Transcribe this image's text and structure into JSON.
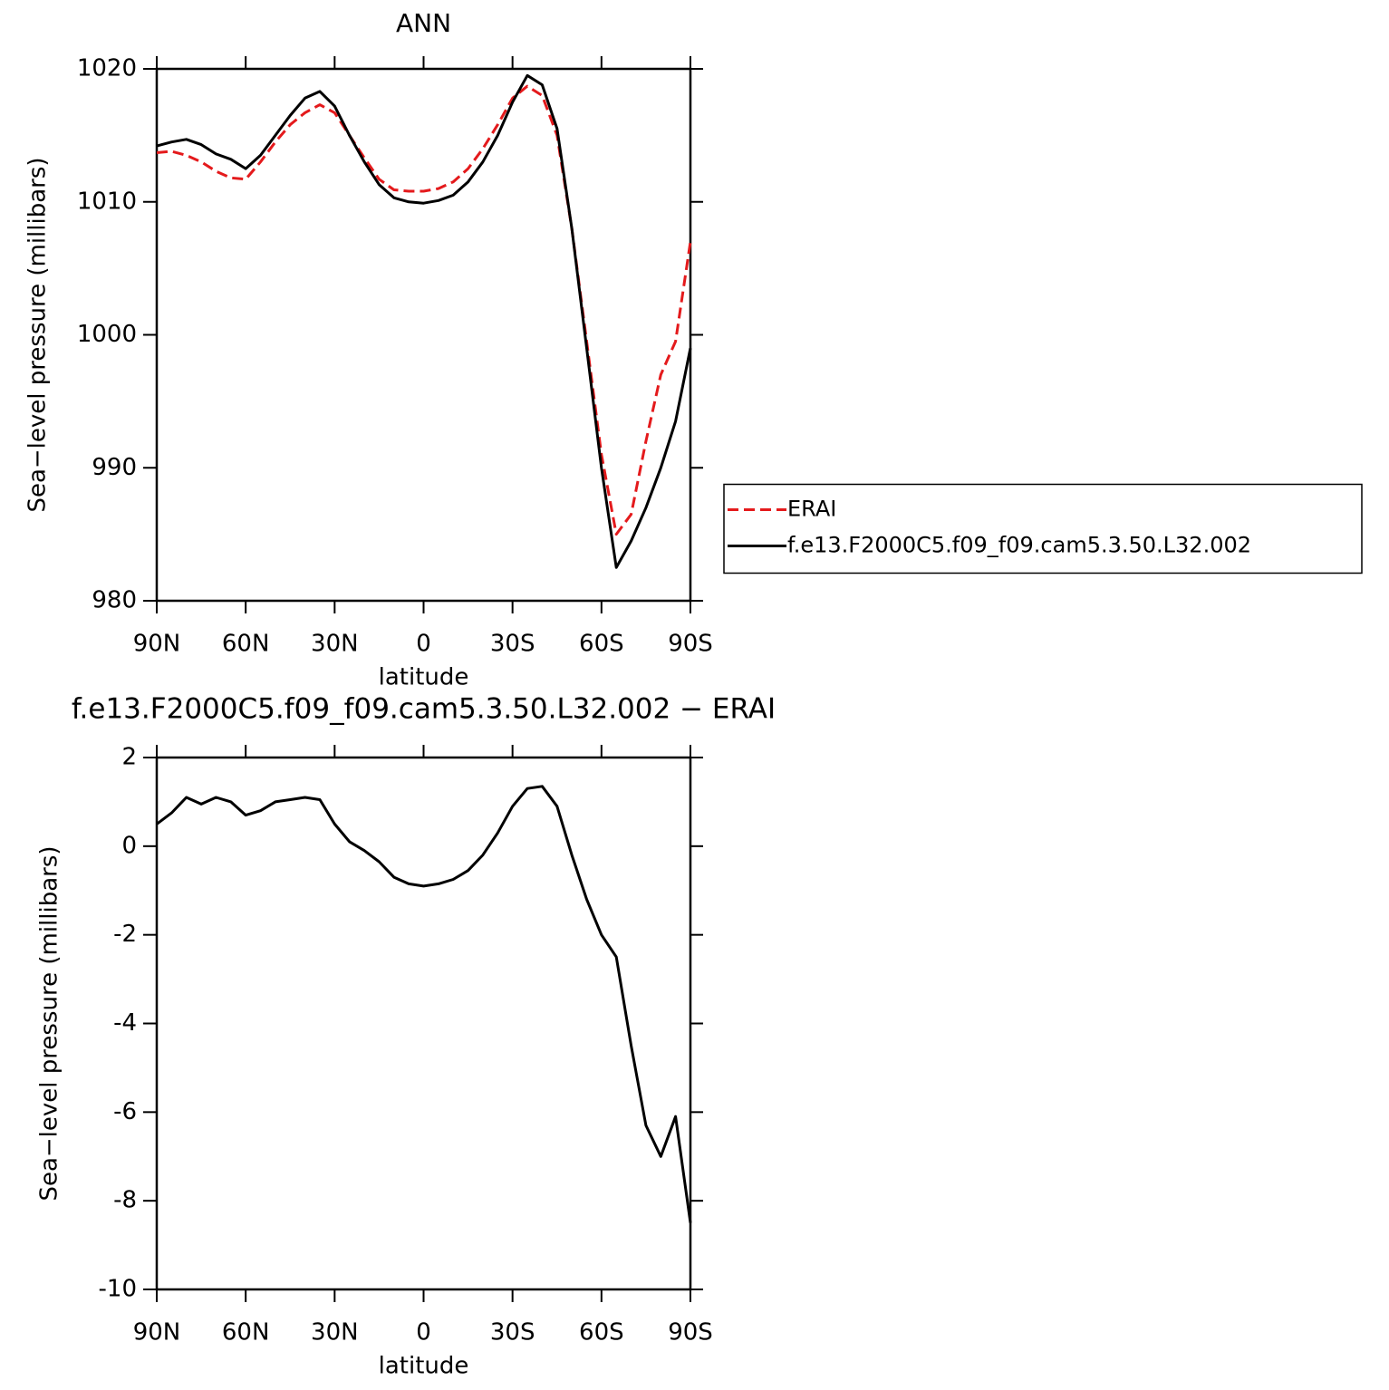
{
  "chart_data": [
    {
      "type": "line",
      "title": "ANN",
      "xlabel": "latitude",
      "ylabel": "Sea−level pressure (millibars)",
      "x": [
        90,
        85,
        80,
        75,
        70,
        65,
        60,
        55,
        50,
        45,
        40,
        35,
        30,
        25,
        20,
        15,
        10,
        5,
        0,
        -5,
        -10,
        -15,
        -20,
        -25,
        -30,
        -35,
        -40,
        -45,
        -50,
        -55,
        -60,
        -65,
        -70,
        -75,
        -80,
        -85,
        -90
      ],
      "xlim": [
        90,
        -90
      ],
      "xticks": [
        {
          "value": 90,
          "label": "90N"
        },
        {
          "value": 60,
          "label": "60N"
        },
        {
          "value": 30,
          "label": "30N"
        },
        0,
        {
          "value": -30,
          "label": "30S"
        },
        {
          "value": -60,
          "label": "60S"
        },
        {
          "value": -90,
          "label": "90S"
        }
      ],
      "ylim": [
        980,
        1020
      ],
      "yticks": [
        980,
        990,
        1000,
        1010,
        1020
      ],
      "legend": "right",
      "series": [
        {
          "name": "ERAI",
          "color": "#e41a1c",
          "line_style": "dashed",
          "values": [
            1013.7,
            1013.8,
            1013.5,
            1013.0,
            1012.3,
            1011.8,
            1011.7,
            1013.0,
            1014.5,
            1015.8,
            1016.7,
            1017.3,
            1016.7,
            1015.0,
            1013.3,
            1011.7,
            1010.9,
            1010.8,
            1010.8,
            1011.0,
            1011.5,
            1012.5,
            1014.0,
            1015.8,
            1017.8,
            1018.7,
            1018.0,
            1015.0,
            1008.0,
            999.5,
            991.0,
            985.0,
            986.5,
            992.0,
            997.0,
            999.5,
            1007.0
          ]
        },
        {
          "name": "f.e13.F2000C5.f09_f09.cam5.3.50.L32.002",
          "color": "#000000",
          "line_style": "solid",
          "values": [
            1014.2,
            1014.5,
            1014.7,
            1014.3,
            1013.6,
            1013.2,
            1012.5,
            1013.5,
            1015.0,
            1016.5,
            1017.8,
            1018.3,
            1017.2,
            1015.0,
            1013.0,
            1011.3,
            1010.3,
            1010.0,
            1009.9,
            1010.1,
            1010.5,
            1011.5,
            1013.0,
            1015.0,
            1017.5,
            1019.5,
            1018.8,
            1015.5,
            1008.0,
            999.0,
            990.0,
            982.5,
            984.5,
            987.0,
            990.0,
            993.5,
            999.0
          ]
        }
      ]
    },
    {
      "type": "line",
      "title": "f.e13.F2000C5.f09_f09.cam5.3.50.L32.002 − ERAI",
      "xlabel": "latitude",
      "ylabel": "Sea−level pressure (millibars)",
      "x": [
        90,
        85,
        80,
        75,
        70,
        65,
        60,
        55,
        50,
        45,
        40,
        35,
        30,
        25,
        20,
        15,
        10,
        5,
        0,
        -5,
        -10,
        -15,
        -20,
        -25,
        -30,
        -35,
        -40,
        -45,
        -50,
        -55,
        -60,
        -65,
        -70,
        -75,
        -80,
        -85,
        -90
      ],
      "xlim": [
        90,
        -90
      ],
      "xticks": [
        {
          "value": 90,
          "label": "90N"
        },
        {
          "value": 60,
          "label": "60N"
        },
        {
          "value": 30,
          "label": "30N"
        },
        0,
        {
          "value": -30,
          "label": "30S"
        },
        {
          "value": -60,
          "label": "60S"
        },
        {
          "value": -90,
          "label": "90S"
        }
      ],
      "ylim": [
        -10,
        2
      ],
      "yticks": [
        -10,
        -8,
        -6,
        -4,
        -2,
        0,
        2
      ],
      "series": [
        {
          "color": "#000000",
          "line_style": "solid",
          "values": [
            0.5,
            0.75,
            1.1,
            0.95,
            1.1,
            1.0,
            0.7,
            0.8,
            1.0,
            1.05,
            1.1,
            1.05,
            0.5,
            0.1,
            -0.1,
            -0.35,
            -0.7,
            -0.85,
            -0.9,
            -0.85,
            -0.75,
            -0.55,
            -0.2,
            0.3,
            0.9,
            1.3,
            1.35,
            0.9,
            -0.2,
            -1.2,
            -2.0,
            -2.5,
            -4.5,
            -6.3,
            -7.0,
            -6.1,
            -8.5
          ]
        }
      ]
    }
  ]
}
